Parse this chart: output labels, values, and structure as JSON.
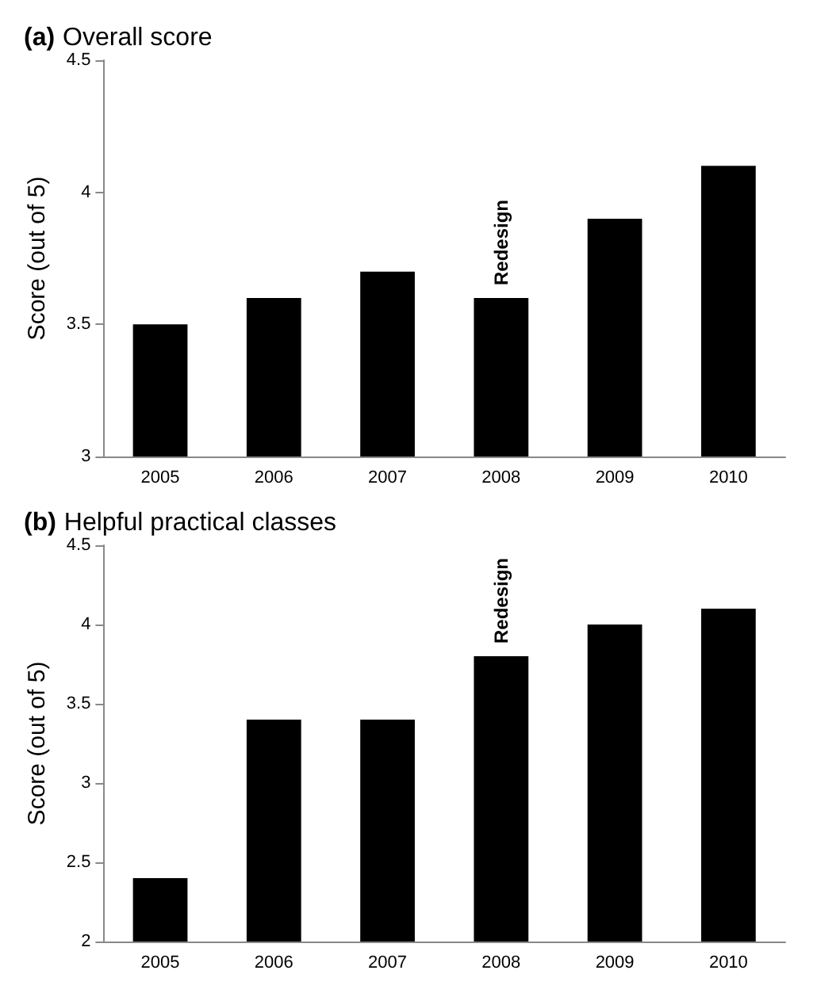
{
  "chart_data": [
    {
      "type": "bar",
      "title": "(a) Overall score",
      "ylabel": "Score (out of 5)",
      "categories": [
        "2005",
        "2006",
        "2007",
        "2008",
        "2009",
        "2010"
      ],
      "values": [
        3.5,
        3.6,
        3.7,
        3.6,
        3.9,
        4.1
      ],
      "color": "#000000",
      "ylim": [
        3,
        4.5
      ],
      "yticks": [
        3,
        3.5,
        4,
        4.5
      ],
      "grid": false,
      "annotations": [
        {
          "text": "Redesign",
          "x": "2008",
          "y": 3.6
        }
      ]
    },
    {
      "type": "bar",
      "title": "(b) Helpful practical classes",
      "ylabel": "Score (out of 5)",
      "categories": [
        "2005",
        "2006",
        "2007",
        "2008",
        "2009",
        "2010"
      ],
      "values": [
        2.4,
        3.4,
        3.4,
        3.8,
        4.0,
        4.1
      ],
      "color": "#000000",
      "ylim": [
        2,
        4.5
      ],
      "yticks": [
        2,
        2.5,
        3,
        3.5,
        4,
        4.5
      ],
      "grid": false,
      "annotations": [
        {
          "text": "Redesign",
          "x": "2008",
          "y": 3.8
        }
      ]
    }
  ]
}
